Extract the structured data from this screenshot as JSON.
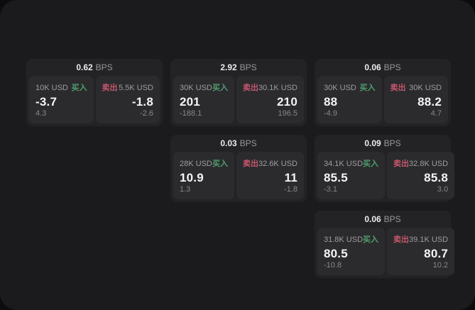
{
  "colors": {
    "page_bg": "#0c0c0d",
    "panel_bg": "#1b1b1d",
    "card_bg": "#232326",
    "tile_bg": "#2b2b2e",
    "buy_green": "#4f9e6e",
    "sell_red": "#c4566c",
    "value_white": "#f4f4f5",
    "label_gray": "#9e9ea0",
    "delta_gray": "#87878a"
  },
  "cards": [
    {
      "spread": "0.62",
      "unit": "BPS",
      "buy": {
        "size": "10K USD",
        "side_label": "买入",
        "price": "-3.7",
        "delta": "4.3"
      },
      "sell": {
        "side_label": "卖出",
        "size": "5.5K USD",
        "price": "-1.8",
        "delta": "-2.6"
      }
    },
    {
      "spread": "2.92",
      "unit": "BPS",
      "buy": {
        "size": "30K USD",
        "side_label": "买入",
        "price": "201",
        "delta": "-188.1"
      },
      "sell": {
        "side_label": "卖出",
        "size": "30.1K USD",
        "price": "210",
        "delta": "196.5"
      }
    },
    {
      "spread": "0.06",
      "unit": "BPS",
      "buy": {
        "size": "30K USD",
        "side_label": "买入",
        "price": "88",
        "delta": "-4.9"
      },
      "sell": {
        "side_label": "卖出",
        "size": "30K USD",
        "price": "88.2",
        "delta": "4.7"
      }
    },
    {
      "spread": "0.03",
      "unit": "BPS",
      "buy": {
        "size": "28K USD",
        "side_label": "买入",
        "price": "10.9",
        "delta": "1.3"
      },
      "sell": {
        "side_label": "卖出",
        "size": "32.6K USD",
        "price": "11",
        "delta": "-1.8"
      }
    },
    {
      "spread": "0.09",
      "unit": "BPS",
      "buy": {
        "size": "34.1K USD",
        "side_label": "买入",
        "price": "85.5",
        "delta": "-3.1"
      },
      "sell": {
        "side_label": "卖出",
        "size": "32.8K USD",
        "price": "85.8",
        "delta": "3.0"
      }
    },
    {
      "spread": "0.06",
      "unit": "BPS",
      "buy": {
        "size": "31.8K USD",
        "side_label": "买入",
        "price": "80.5",
        "delta": "-10.8"
      },
      "sell": {
        "side_label": "卖出",
        "size": "39.1K USD",
        "price": "80.7",
        "delta": "10.2"
      }
    }
  ]
}
